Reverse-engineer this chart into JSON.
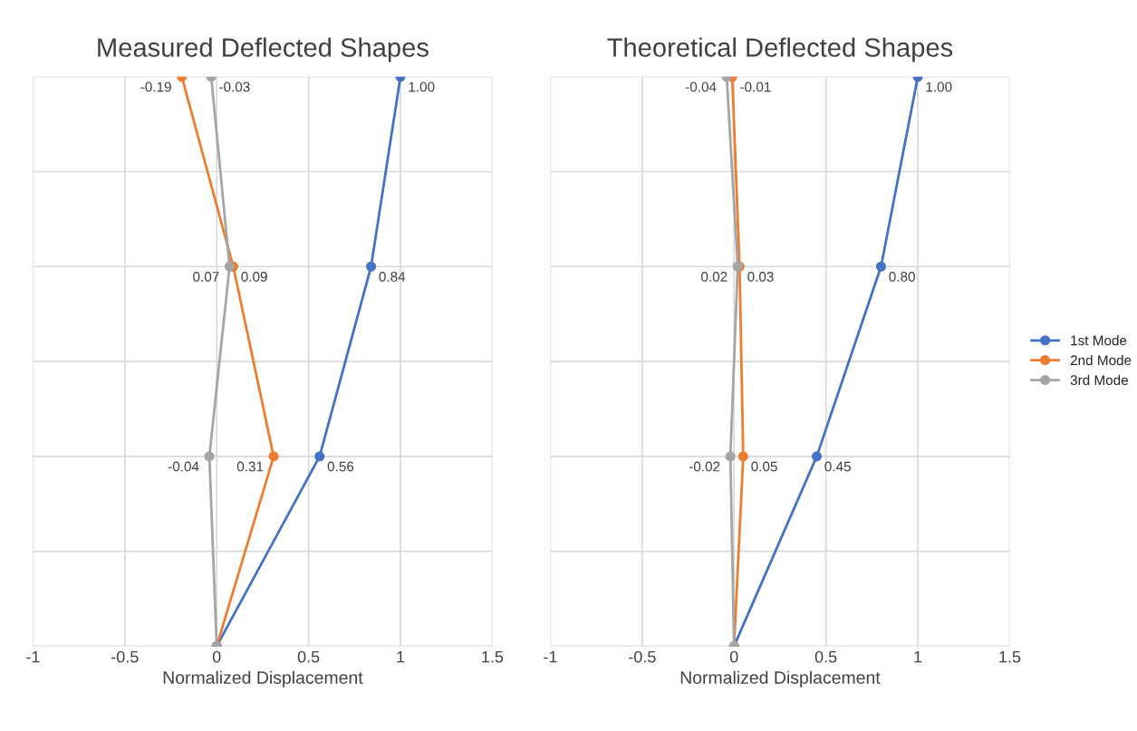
{
  "chart_data": [
    {
      "type": "line",
      "title": "Measured Deflected Shapes",
      "xlabel": "Normalized Displacement",
      "orientation": "horizontal",
      "categories": [
        null,
        null,
        null,
        null
      ],
      "xlim": [
        -1,
        1.5
      ],
      "xticks": [
        -1,
        -0.5,
        0,
        0.5,
        1,
        1.5
      ],
      "tick_labels": "x",
      "grid": true,
      "marker": "circle",
      "line_style": "solid",
      "series": [
        {
          "color": "#4472c4",
          "values": [
            1.0,
            0.84,
            0.56,
            0
          ],
          "value_labels": [
            "1.00",
            "0.84",
            "0.56",
            null
          ]
        },
        {
          "color": "#ed7d31",
          "values": [
            -0.19,
            0.09,
            0.31,
            0
          ],
          "value_labels": [
            "-0.19",
            "0.09",
            "0.31",
            null
          ]
        },
        {
          "color": "#a5a5a5",
          "values": [
            -0.03,
            0.07,
            -0.04,
            0
          ],
          "value_labels": [
            "-0.03",
            "0.07",
            "-0.04",
            null
          ]
        }
      ]
    },
    {
      "type": "line",
      "title": "Theoretical Deflected Shapes",
      "xlabel": "Normalized Displacement",
      "orientation": "horizontal",
      "categories": [
        null,
        null,
        null,
        null
      ],
      "xlim": [
        -1,
        1.5
      ],
      "xticks": [
        -1,
        -0.5,
        0,
        0.5,
        1,
        1.5
      ],
      "tick_labels": "x",
      "grid": true,
      "marker": "circle",
      "line_style": "solid",
      "legend": "right",
      "series": [
        {
          "name": "1st Mode",
          "color": "#4472c4",
          "values": [
            1.0,
            0.8,
            0.45,
            0
          ],
          "value_labels": [
            "1.00",
            "0.80",
            "0.45",
            null
          ]
        },
        {
          "name": "2nd Mode",
          "color": "#ed7d31",
          "values": [
            -0.01,
            0.03,
            0.05,
            0
          ],
          "value_labels": [
            "-0.01",
            "0.03",
            "0.05",
            null
          ]
        },
        {
          "name": "3rd Mode",
          "color": "#a5a5a5",
          "values": [
            -0.04,
            0.02,
            -0.02,
            0
          ],
          "value_labels": [
            "-0.04",
            "0.02",
            "-0.02",
            null
          ]
        }
      ]
    }
  ]
}
